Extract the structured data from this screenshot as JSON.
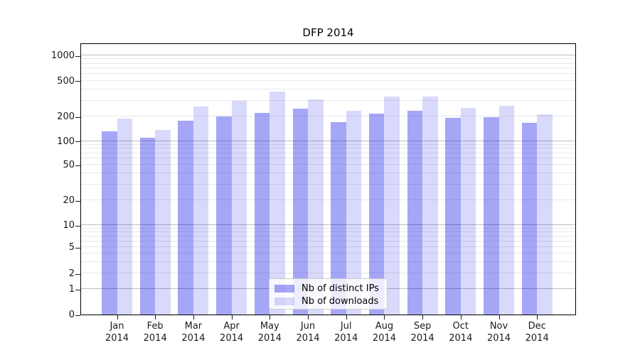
{
  "title": "DFP 2014",
  "chart_data": {
    "type": "bar",
    "title": "DFP 2014",
    "scale": "symlog",
    "grid": "horizontal",
    "legend_position": "lower center",
    "year": "2014",
    "categories": [
      "Jan",
      "Feb",
      "Mar",
      "Apr",
      "May",
      "Jun",
      "Jul",
      "Aug",
      "Sep",
      "Oct",
      "Nov",
      "Dec"
    ],
    "y_ticks": [
      0,
      1,
      2,
      5,
      10,
      20,
      50,
      100,
      200,
      500,
      1000
    ],
    "ylim": [
      0,
      1400
    ],
    "series": [
      {
        "name": "Nb of distinct IPs",
        "color": "rgba(0,0,230,0.35)",
        "values": [
          132,
          110,
          177,
          201,
          220,
          245,
          170,
          215,
          233,
          191,
          197,
          168
        ]
      },
      {
        "name": "Nb of downloads",
        "color": "rgba(0,0,230,0.15)",
        "values": [
          190,
          137,
          260,
          300,
          380,
          309,
          230,
          332,
          336,
          250,
          264,
          210
        ]
      }
    ]
  }
}
